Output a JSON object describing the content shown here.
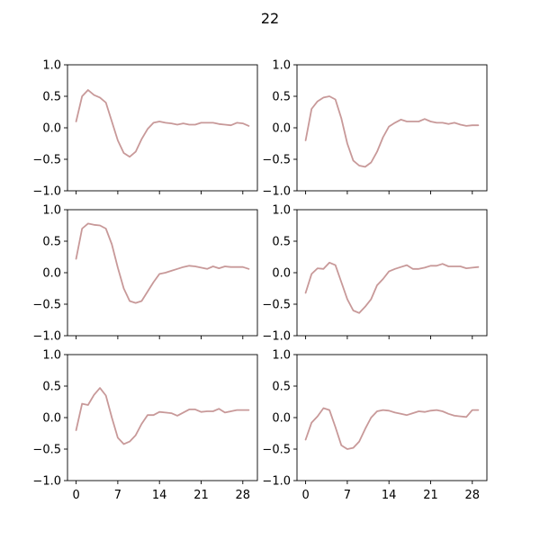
{
  "figure": {
    "suptitle": "22"
  },
  "chart_data": [
    {
      "type": "line",
      "panel": "row-1-col-1",
      "x": [
        0,
        1,
        2,
        3,
        4,
        5,
        6,
        7,
        8,
        9,
        10,
        11,
        12,
        13,
        14,
        15,
        16,
        17,
        18,
        19,
        20,
        21,
        22,
        23,
        24,
        25,
        26,
        27,
        28,
        29
      ],
      "series": [
        {
          "values": [
            0.1,
            0.5,
            0.6,
            0.52,
            0.48,
            0.4,
            0.1,
            -0.2,
            -0.4,
            -0.46,
            -0.38,
            -0.18,
            -0.02,
            0.08,
            0.1,
            0.08,
            0.07,
            0.05,
            0.07,
            0.05,
            0.05,
            0.08,
            0.08,
            0.08,
            0.06,
            0.05,
            0.04,
            0.08,
            0.07,
            0.03
          ]
        }
      ],
      "xticks": [
        0,
        7,
        14,
        21,
        28
      ],
      "yticks": [
        -1.0,
        -0.5,
        0.0,
        0.5,
        1.0
      ],
      "ytick_labels": [
        "−1.0",
        "−0.5",
        "0.0",
        "0.5",
        "1.0"
      ],
      "xlim": [
        -1.45,
        30.45
      ],
      "ylim": [
        -1.0,
        1.0
      ],
      "color": "#c89999",
      "show_xtick_labels": false,
      "show_ytick_labels": true
    },
    {
      "type": "line",
      "panel": "row-1-col-2",
      "x": [
        0,
        1,
        2,
        3,
        4,
        5,
        6,
        7,
        8,
        9,
        10,
        11,
        12,
        13,
        14,
        15,
        16,
        17,
        18,
        19,
        20,
        21,
        22,
        23,
        24,
        25,
        26,
        27,
        28,
        29
      ],
      "series": [
        {
          "values": [
            -0.2,
            0.3,
            0.42,
            0.48,
            0.5,
            0.45,
            0.15,
            -0.25,
            -0.52,
            -0.6,
            -0.62,
            -0.55,
            -0.38,
            -0.15,
            0.02,
            0.08,
            0.13,
            0.1,
            0.1,
            0.1,
            0.14,
            0.1,
            0.08,
            0.08,
            0.06,
            0.08,
            0.05,
            0.03,
            0.04,
            0.04
          ]
        }
      ],
      "xticks": [
        0,
        7,
        14,
        21,
        28
      ],
      "yticks": [
        -1.0,
        -0.5,
        0.0,
        0.5,
        1.0
      ],
      "ytick_labels": [
        "−1.0",
        "−0.5",
        "0.0",
        "0.5",
        "1.0"
      ],
      "xlim": [
        -1.45,
        30.45
      ],
      "ylim": [
        -1.0,
        1.0
      ],
      "color": "#c89999",
      "show_xtick_labels": false,
      "show_ytick_labels": true
    },
    {
      "type": "line",
      "panel": "row-2-col-1",
      "x": [
        0,
        1,
        2,
        3,
        4,
        5,
        6,
        7,
        8,
        9,
        10,
        11,
        12,
        13,
        14,
        15,
        16,
        17,
        18,
        19,
        20,
        21,
        22,
        23,
        24,
        25,
        26,
        27,
        28,
        29
      ],
      "series": [
        {
          "values": [
            0.22,
            0.7,
            0.78,
            0.76,
            0.75,
            0.7,
            0.45,
            0.08,
            -0.25,
            -0.45,
            -0.48,
            -0.45,
            -0.3,
            -0.15,
            -0.02,
            0.0,
            0.03,
            0.06,
            0.09,
            0.11,
            0.1,
            0.08,
            0.06,
            0.1,
            0.07,
            0.1,
            0.09,
            0.09,
            0.09,
            0.06
          ]
        }
      ],
      "xticks": [
        0,
        7,
        14,
        21,
        28
      ],
      "yticks": [
        -1.0,
        -0.5,
        0.0,
        0.5,
        1.0
      ],
      "ytick_labels": [
        "−1.0",
        "−0.5",
        "0.0",
        "0.5",
        "1.0"
      ],
      "xlim": [
        -1.45,
        30.45
      ],
      "ylim": [
        -1.0,
        1.0
      ],
      "color": "#c89999",
      "show_xtick_labels": false,
      "show_ytick_labels": true
    },
    {
      "type": "line",
      "panel": "row-2-col-2",
      "x": [
        0,
        1,
        2,
        3,
        4,
        5,
        6,
        7,
        8,
        9,
        10,
        11,
        12,
        13,
        14,
        15,
        16,
        17,
        18,
        19,
        20,
        21,
        22,
        23,
        24,
        25,
        26,
        27,
        28,
        29
      ],
      "series": [
        {
          "values": [
            -0.32,
            -0.02,
            0.07,
            0.06,
            0.16,
            0.12,
            -0.15,
            -0.42,
            -0.6,
            -0.64,
            -0.54,
            -0.42,
            -0.2,
            -0.1,
            0.02,
            0.06,
            0.09,
            0.12,
            0.06,
            0.06,
            0.08,
            0.11,
            0.11,
            0.14,
            0.1,
            0.1,
            0.1,
            0.07,
            0.08,
            0.09
          ]
        }
      ],
      "xticks": [
        0,
        7,
        14,
        21,
        28
      ],
      "yticks": [
        -1.0,
        -0.5,
        0.0,
        0.5,
        1.0
      ],
      "ytick_labels": [
        "−1.0",
        "−0.5",
        "0.0",
        "0.5",
        "1.0"
      ],
      "xlim": [
        -1.45,
        30.45
      ],
      "ylim": [
        -1.0,
        1.0
      ],
      "color": "#c89999",
      "show_xtick_labels": false,
      "show_ytick_labels": true
    },
    {
      "type": "line",
      "panel": "row-3-col-1",
      "x": [
        0,
        1,
        2,
        3,
        4,
        5,
        6,
        7,
        8,
        9,
        10,
        11,
        12,
        13,
        14,
        15,
        16,
        17,
        18,
        19,
        20,
        21,
        22,
        23,
        24,
        25,
        26,
        27,
        28,
        29
      ],
      "series": [
        {
          "values": [
            -0.2,
            0.22,
            0.2,
            0.36,
            0.47,
            0.35,
            0.0,
            -0.32,
            -0.42,
            -0.38,
            -0.28,
            -0.1,
            0.04,
            0.04,
            0.09,
            0.08,
            0.07,
            0.03,
            0.08,
            0.13,
            0.13,
            0.09,
            0.1,
            0.1,
            0.14,
            0.08,
            0.1,
            0.12,
            0.12,
            0.12
          ]
        }
      ],
      "xticks": [
        0,
        7,
        14,
        21,
        28
      ],
      "yticks": [
        -1.0,
        -0.5,
        0.0,
        0.5,
        1.0
      ],
      "ytick_labels": [
        "−1.0",
        "−0.5",
        "0.0",
        "0.5",
        "1.0"
      ],
      "xlim": [
        -1.45,
        30.45
      ],
      "ylim": [
        -1.0,
        1.0
      ],
      "color": "#c89999",
      "show_xtick_labels": true,
      "show_ytick_labels": true
    },
    {
      "type": "line",
      "panel": "row-3-col-2",
      "x": [
        0,
        1,
        2,
        3,
        4,
        5,
        6,
        7,
        8,
        9,
        10,
        11,
        12,
        13,
        14,
        15,
        16,
        17,
        18,
        19,
        20,
        21,
        22,
        23,
        24,
        25,
        26,
        27,
        28,
        29
      ],
      "series": [
        {
          "values": [
            -0.35,
            -0.08,
            0.02,
            0.15,
            0.12,
            -0.15,
            -0.44,
            -0.5,
            -0.48,
            -0.38,
            -0.18,
            0.0,
            0.1,
            0.12,
            0.11,
            0.08,
            0.06,
            0.04,
            0.07,
            0.1,
            0.09,
            0.11,
            0.12,
            0.1,
            0.06,
            0.03,
            0.02,
            0.01,
            0.12,
            0.12
          ]
        }
      ],
      "xticks": [
        0,
        7,
        14,
        21,
        28
      ],
      "yticks": [
        -1.0,
        -0.5,
        0.0,
        0.5,
        1.0
      ],
      "ytick_labels": [
        "−1.0",
        "−0.5",
        "0.0",
        "0.5",
        "1.0"
      ],
      "xlim": [
        -1.45,
        30.45
      ],
      "ylim": [
        -1.0,
        1.0
      ],
      "color": "#c89999",
      "show_xtick_labels": true,
      "show_ytick_labels": true
    }
  ]
}
